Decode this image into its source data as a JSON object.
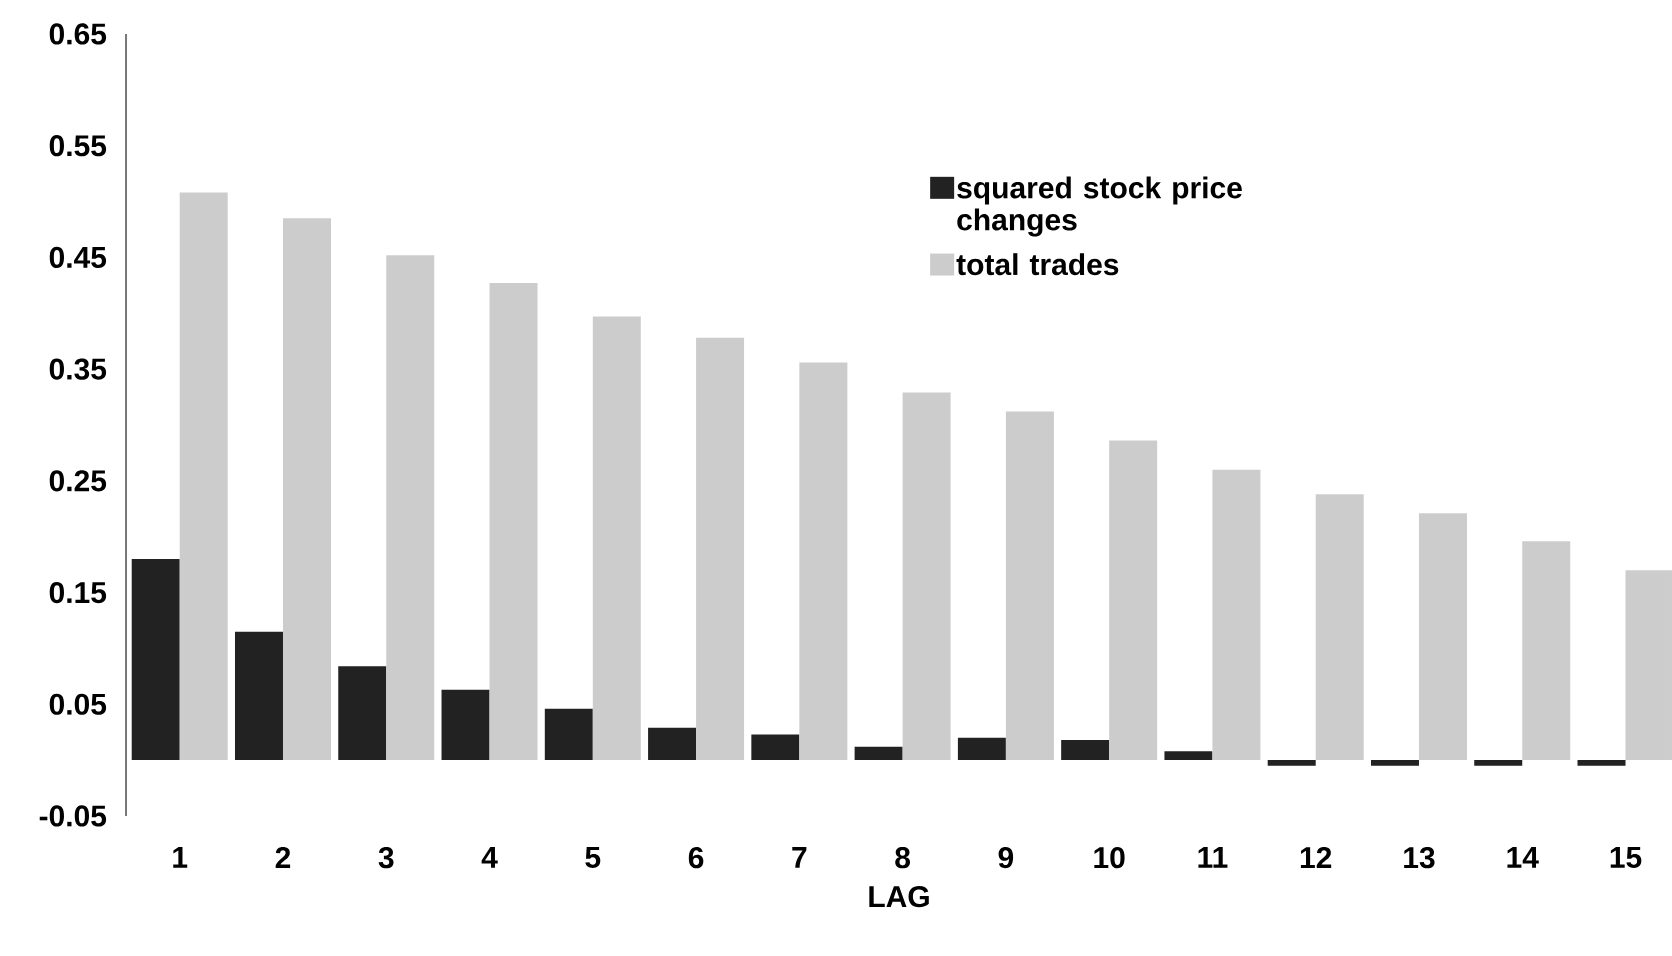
{
  "chart_data": {
    "type": "bar",
    "xlabel": "LAG",
    "categories": [
      "1",
      "2",
      "3",
      "4",
      "5",
      "6",
      "7",
      "8",
      "9",
      "10",
      "11",
      "12",
      "13",
      "14",
      "15"
    ],
    "series": [
      {
        "name": "squared stock price changes",
        "color": "#222222",
        "values": [
          0.18,
          0.115,
          0.084,
          0.063,
          0.046,
          0.029,
          0.023,
          0.012,
          0.02,
          0.018,
          0.008,
          -0.005,
          -0.005,
          -0.005,
          -0.005
        ]
      },
      {
        "name": "total trades",
        "color": "#cccccc",
        "values": [
          0.508,
          0.485,
          0.452,
          0.427,
          0.397,
          0.378,
          0.356,
          0.329,
          0.312,
          0.286,
          0.26,
          0.238,
          0.221,
          0.196,
          0.17
        ]
      }
    ],
    "ylim": [
      -0.05,
      0.65
    ],
    "yticks": [
      -0.05,
      0.05,
      0.15,
      0.25,
      0.35,
      0.45,
      0.55,
      0.65
    ],
    "legend": "top right",
    "grid": false
  }
}
